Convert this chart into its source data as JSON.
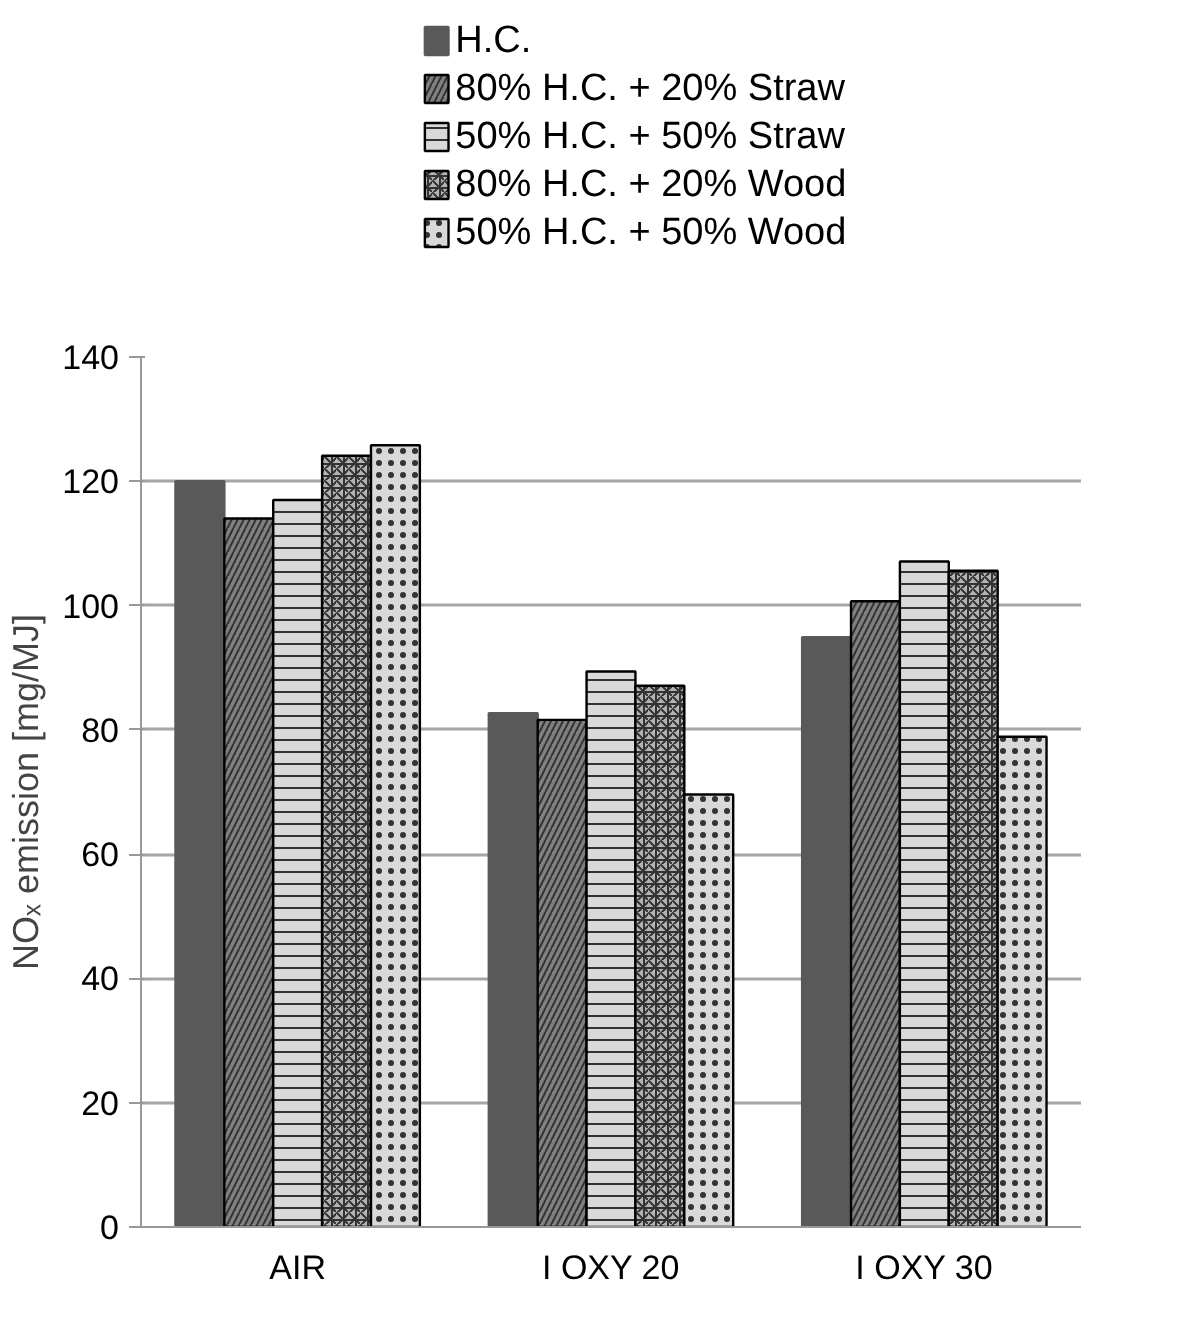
{
  "chart_data": {
    "type": "bar",
    "ylabel": "NOₓ emission [mg/MJ]",
    "categories": [
      "AIR",
      "I OXY 20",
      "I OXY 30"
    ],
    "series": [
      {
        "name": "H.C.",
        "color": "#595959",
        "values": [
          120,
          82.7,
          94.9
        ]
      },
      {
        "name": "80% H.C.  + 20% Straw",
        "color": "#808080",
        "values": [
          114,
          81.6,
          100.7
        ]
      },
      {
        "name": "50% H.C.  + 50% Straw",
        "color": "#d9d9d9",
        "values": [
          117,
          89.4,
          107.1
        ]
      },
      {
        "name": "80% H.C.  + 20% Wood",
        "color": "#b3b3b3",
        "values": [
          124.1,
          87.1,
          105.6
        ]
      },
      {
        "name": "50% H.C.  + 50% Wood",
        "color": "#d9d9d9",
        "values": [
          125.8,
          69.6,
          78.9
        ]
      }
    ],
    "ylim": [
      0,
      140
    ],
    "yticks": [
      0,
      20,
      40,
      60,
      80,
      100,
      120,
      140
    ],
    "grid": "y",
    "legend": "top"
  }
}
